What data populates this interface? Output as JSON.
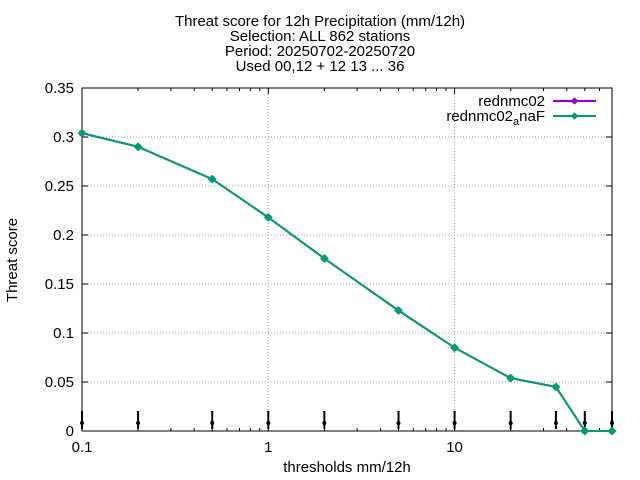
{
  "title_lines": [
    "Threat score  for 12h Precipitation (mm/12h)",
    "Selection: ALL    862 stations",
    "Period: 20250702-20250720",
    "Used 00,12 + 12 13 ... 36"
  ],
  "chart_data": {
    "type": "line",
    "xlabel": "thresholds mm/12h",
    "ylabel": "Threat score",
    "xscale": "log",
    "xlim": [
      0.1,
      70
    ],
    "ylim": [
      0,
      0.35
    ],
    "xticks": [
      0.1,
      1,
      10
    ],
    "xtick_labels": [
      "0.1",
      "1",
      "10"
    ],
    "yticks": [
      0,
      0.05,
      0.1,
      0.15,
      0.2,
      0.25,
      0.3,
      0.35
    ],
    "ytick_labels": [
      "0",
      "0.05",
      "0.1",
      "0.15",
      "0.2",
      "0.25",
      "0.3",
      "0.35"
    ],
    "grid": true,
    "legend_position": "top-right",
    "x": [
      0.1,
      0.2,
      0.5,
      1,
      2,
      5,
      10,
      20,
      35,
      50,
      70
    ],
    "series": [
      {
        "name": "rednmc02",
        "color": "#9400d3",
        "values": [
          0.304,
          0.29,
          0.257,
          0.218,
          0.176,
          0.123,
          0.085,
          0.054,
          0.045,
          0.0,
          0.0
        ]
      },
      {
        "name": "rednmc02_anaF",
        "name_base": "rednmc02",
        "name_sub": "a",
        "name_rest": "naF",
        "color": "#009e73",
        "values": [
          0.304,
          0.29,
          0.257,
          0.218,
          0.176,
          0.123,
          0.085,
          0.054,
          0.045,
          0.0,
          0.0
        ]
      }
    ]
  }
}
